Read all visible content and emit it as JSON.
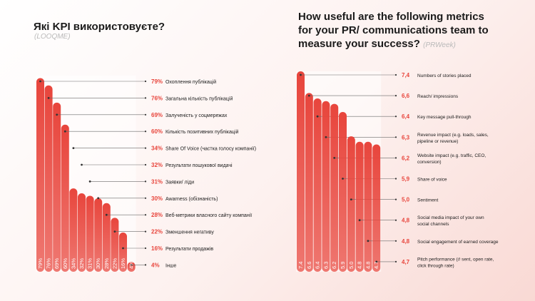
{
  "charts": {
    "left": {
      "title": "Які KPI використовуєте?",
      "source": "(LOOQME)"
    },
    "right": {
      "title_lines": [
        "How useful are the following metrics",
        "for your PR/ communications team to",
        "measure your success?"
      ],
      "source": "(PRWeek)"
    }
  },
  "chart_data": [
    {
      "type": "bar",
      "title": "Які KPI використовуєте?",
      "bar_color": "#e8453c",
      "ylim": [
        0,
        80
      ],
      "categories": [
        "Охоплення публікацій",
        "Загальна кількість публікацій",
        "Залученість у соцмережах",
        "Кількість позитивних публікацій",
        "Share Of Voice (частка голосу компанії)",
        "Результати пошукової видачі",
        "Заявки/ ліди",
        "Awarness (обізнаність)",
        "Веб-метрики власного сайту компанії",
        "Зменшення негативу",
        "Результати продажів",
        "Інше"
      ],
      "values": [
        79,
        76,
        69,
        60,
        34,
        32,
        31,
        30,
        28,
        22,
        16,
        4
      ],
      "value_labels": [
        "79%",
        "76%",
        "69%",
        "60%",
        "34%",
        "32%",
        "31%",
        "30%",
        "28%",
        "22%",
        "16%",
        "4%"
      ],
      "bar_labels": [
        "79%",
        "76%",
        "69%",
        "60%",
        "34%",
        "32%",
        "31%",
        "30%",
        "28%",
        "22%",
        "16%",
        "4%"
      ]
    },
    {
      "type": "bar",
      "title": "How useful are the following metrics for your PR/ communications team to measure your success?",
      "bar_color": "#e8453c",
      "ylim": [
        0,
        7.4
      ],
      "categories": [
        [
          "Numbers of stories placed"
        ],
        [
          "Reach/ impressions"
        ],
        [
          "Key message pull-through"
        ],
        [
          "Revenue impact (e.g. loads, sales,",
          "pipeline or revenue)"
        ],
        [
          "Website impact (e.g. traffic, CEO,",
          "conversion)"
        ],
        [
          "Share of voice"
        ],
        [
          "Sentiment"
        ],
        [
          "Social media impact of your own",
          "social channels"
        ],
        [
          "Social engagement of earned coverage"
        ],
        [
          "Pitch performance (# sent, open rate,",
          "click through rate)"
        ]
      ],
      "values": [
        7.4,
        6.6,
        6.4,
        6.3,
        6.2,
        5.9,
        5.0,
        4.8,
        4.8,
        4.7
      ],
      "value_labels": [
        "7,4",
        "6,6",
        "6,4",
        "6,3",
        "6,2",
        "5,9",
        "5,0",
        "4,8",
        "4,8",
        "4,7"
      ],
      "bar_labels": [
        "7.4",
        "6.6",
        "6.4",
        "6.3",
        "6.2",
        "5.9",
        "5.0",
        "4.8",
        "4.8",
        "4.7"
      ]
    }
  ]
}
